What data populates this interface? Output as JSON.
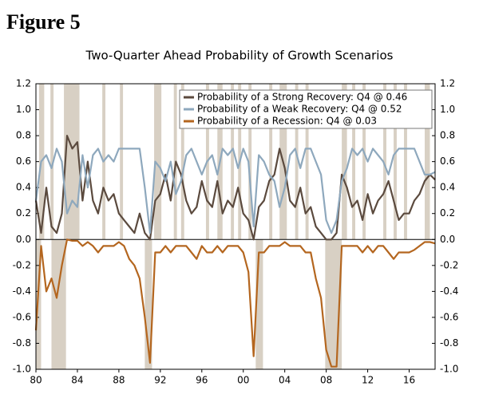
{
  "chart_data": {
    "type": "line",
    "figure_label": "Figure 5",
    "title": "Two-Quarter Ahead Probability of Growth Scenarios",
    "x": [
      1980,
      1980.5,
      1981,
      1981.5,
      1982,
      1982.5,
      1983,
      1983.5,
      1984,
      1984.5,
      1985,
      1985.5,
      1986,
      1986.5,
      1987,
      1987.5,
      1988,
      1988.5,
      1989,
      1989.5,
      1990,
      1990.5,
      1991,
      1991.5,
      1992,
      1992.5,
      1993,
      1993.5,
      1994,
      1994.5,
      1995,
      1995.5,
      1996,
      1996.5,
      1997,
      1997.5,
      1998,
      1998.5,
      1999,
      1999.5,
      2000,
      2000.5,
      2001,
      2001.5,
      2002,
      2002.5,
      2003,
      2003.5,
      2004,
      2004.5,
      2005,
      2005.5,
      2006,
      2006.5,
      2007,
      2007.5,
      2008,
      2008.5,
      2009,
      2009.5,
      2010,
      2010.5,
      2011,
      2011.5,
      2012,
      2012.5,
      2013,
      2013.5,
      2014,
      2014.5,
      2015,
      2015.5,
      2016,
      2016.5,
      2017,
      2017.5,
      2018,
      2018.5
    ],
    "series": [
      {
        "name": "Probability of a Strong Recovery: Q4 @ 0.46",
        "color": "#5b4a3e",
        "values": [
          0.3,
          0.05,
          0.4,
          0.1,
          0.05,
          0.2,
          0.8,
          0.7,
          0.75,
          0.3,
          0.6,
          0.3,
          0.2,
          0.4,
          0.3,
          0.35,
          0.2,
          0.15,
          0.1,
          0.05,
          0.2,
          0.05,
          0.0,
          0.3,
          0.35,
          0.5,
          0.3,
          0.6,
          0.5,
          0.3,
          0.2,
          0.25,
          0.45,
          0.3,
          0.25,
          0.45,
          0.2,
          0.3,
          0.25,
          0.4,
          0.2,
          0.15,
          0.0,
          0.25,
          0.3,
          0.45,
          0.5,
          0.7,
          0.55,
          0.3,
          0.25,
          0.4,
          0.2,
          0.25,
          0.1,
          0.05,
          0.0,
          0.0,
          0.05,
          0.5,
          0.4,
          0.25,
          0.3,
          0.15,
          0.35,
          0.2,
          0.3,
          0.35,
          0.45,
          0.3,
          0.15,
          0.2,
          0.2,
          0.3,
          0.35,
          0.45,
          0.5,
          0.46
        ]
      },
      {
        "name": "Probability of a Weak Recovery: Q4 @ 0.52",
        "color": "#8ea8bd",
        "values": [
          0.3,
          0.6,
          0.65,
          0.55,
          0.7,
          0.6,
          0.2,
          0.3,
          0.25,
          0.65,
          0.4,
          0.65,
          0.7,
          0.6,
          0.65,
          0.6,
          0.7,
          0.7,
          0.7,
          0.7,
          0.7,
          0.4,
          0.05,
          0.6,
          0.55,
          0.45,
          0.6,
          0.35,
          0.45,
          0.65,
          0.7,
          0.6,
          0.5,
          0.6,
          0.65,
          0.5,
          0.7,
          0.65,
          0.7,
          0.55,
          0.7,
          0.6,
          0.1,
          0.65,
          0.6,
          0.5,
          0.45,
          0.25,
          0.4,
          0.65,
          0.7,
          0.55,
          0.7,
          0.7,
          0.6,
          0.5,
          0.15,
          0.05,
          0.15,
          0.45,
          0.55,
          0.7,
          0.65,
          0.7,
          0.6,
          0.7,
          0.65,
          0.6,
          0.5,
          0.65,
          0.7,
          0.7,
          0.7,
          0.7,
          0.6,
          0.5,
          0.5,
          0.52
        ]
      },
      {
        "name": "Probability of a Recession: Q4 @ 0.03",
        "color": "#b4661f",
        "values": [
          -0.7,
          -0.05,
          -0.4,
          -0.3,
          -0.45,
          -0.2,
          0.0,
          -0.01,
          -0.01,
          -0.05,
          -0.02,
          -0.05,
          -0.1,
          -0.05,
          -0.05,
          -0.05,
          -0.02,
          -0.05,
          -0.15,
          -0.2,
          -0.3,
          -0.6,
          -0.95,
          -0.1,
          -0.1,
          -0.05,
          -0.1,
          -0.05,
          -0.05,
          -0.05,
          -0.1,
          -0.15,
          -0.05,
          -0.1,
          -0.1,
          -0.05,
          -0.1,
          -0.05,
          -0.05,
          -0.05,
          -0.1,
          -0.25,
          -0.9,
          -0.1,
          -0.1,
          -0.05,
          -0.05,
          -0.05,
          -0.02,
          -0.05,
          -0.05,
          -0.05,
          -0.1,
          -0.1,
          -0.3,
          -0.45,
          -0.85,
          -0.98,
          -0.98,
          -0.05,
          -0.05,
          -0.05,
          -0.05,
          -0.1,
          -0.05,
          -0.1,
          -0.05,
          -0.05,
          -0.1,
          -0.15,
          -0.1,
          -0.1,
          -0.1,
          -0.08,
          -0.05,
          -0.02,
          -0.02,
          -0.03
        ]
      }
    ],
    "shaded_upper": [
      [
        1980.3,
        1980.8
      ],
      [
        1981.4,
        1981.7
      ],
      [
        1982.7,
        1984.2
      ],
      [
        1986.4,
        1986.7
      ],
      [
        1988.1,
        1988.4
      ],
      [
        1991.4,
        1992.1
      ],
      [
        1993.3,
        1993.6
      ],
      [
        1994.0,
        1994.3
      ],
      [
        1996.4,
        1996.7
      ],
      [
        1997.5,
        1998.0
      ],
      [
        1998.8,
        1999.1
      ],
      [
        1999.5,
        1999.8
      ],
      [
        2000.5,
        2000.8
      ],
      [
        2002.5,
        2002.8
      ],
      [
        2003.5,
        2004.2
      ],
      [
        2005.0,
        2005.3
      ],
      [
        2006.0,
        2006.3
      ],
      [
        2009.5,
        2010.0
      ],
      [
        2010.5,
        2010.8
      ],
      [
        2011.5,
        2011.8
      ],
      [
        2013.5,
        2013.8
      ],
      [
        2014.5,
        2014.8
      ],
      [
        2015.5,
        2015.8
      ],
      [
        2017.5,
        2018.0
      ]
    ],
    "shaded_lower": [
      [
        1980.0,
        1980.5
      ],
      [
        1981.5,
        1982.9
      ],
      [
        1990.5,
        1991.2
      ],
      [
        2001.2,
        2001.9
      ],
      [
        2007.9,
        2009.5
      ]
    ],
    "xlim": [
      1980,
      2018.5
    ],
    "xticks": [
      {
        "value": 1980,
        "label": "80"
      },
      {
        "value": 1984,
        "label": "84"
      },
      {
        "value": 1988,
        "label": "88"
      },
      {
        "value": 1992,
        "label": "92"
      },
      {
        "value": 1996,
        "label": "96"
      },
      {
        "value": 2000,
        "label": "00"
      },
      {
        "value": 2004,
        "label": "04"
      },
      {
        "value": 2008,
        "label": "08"
      },
      {
        "value": 2012,
        "label": "12"
      },
      {
        "value": 2016,
        "label": "16"
      }
    ],
    "ylim": [
      -1,
      1.2
    ],
    "yticks": [
      1.2,
      {
        "value": 1,
        "label": "1.0"
      },
      0.8,
      0.6,
      0.4,
      0.2,
      {
        "value": 0,
        "label": "0.0"
      },
      -0.2,
      -0.4,
      -0.6,
      -0.8,
      {
        "value": -1,
        "label": "-1.0"
      }
    ],
    "y2lim": [
      -1,
      1.2
    ],
    "y2ticks": [
      1.2,
      {
        "value": 1,
        "label": "1.0"
      },
      0.8,
      0.6,
      0.4,
      0.2,
      {
        "value": 0,
        "label": "0.0"
      },
      -0.2,
      -0.4,
      -0.6,
      -0.8,
      {
        "value": -1,
        "label": "-1.0"
      }
    ],
    "shade_color": "#d8d0c4",
    "legend": "upper right"
  }
}
